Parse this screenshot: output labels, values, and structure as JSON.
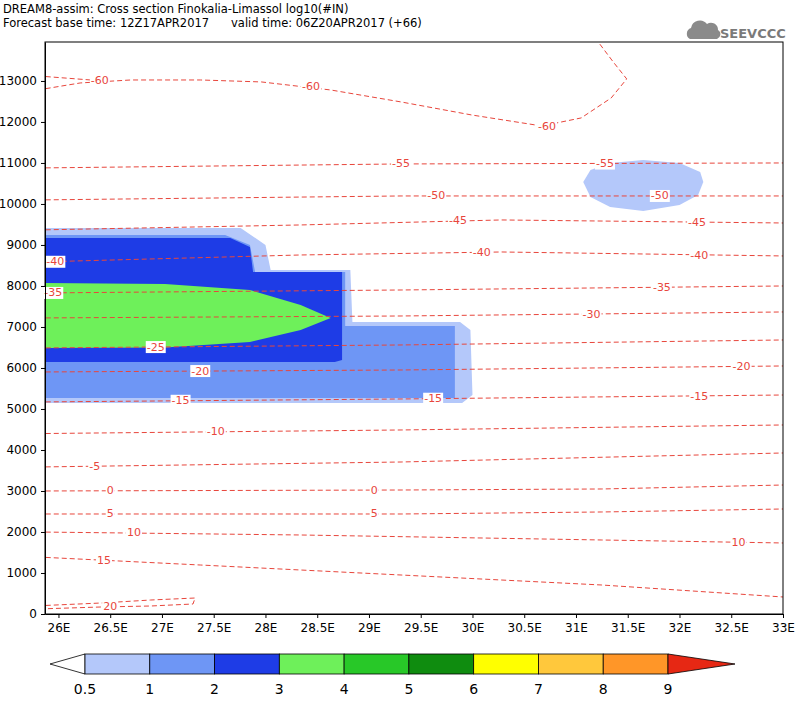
{
  "chart_data": {
    "type": "contour",
    "title": "DREAM8-assim: Cross section Finokalia-Limassol log10(#IN)",
    "subtitle": "Forecast base time: 12Z17APR2017      valid time: 06Z20APR2017 (+66)",
    "logo": "SEEVCCC",
    "xlim": [
      25.87,
      33.0
    ],
    "ylim": [
      0,
      13950
    ],
    "xticks": [
      {
        "value": 26,
        "label": "26E"
      },
      {
        "value": 26.5,
        "label": "26.5E"
      },
      {
        "value": 27,
        "label": "27E"
      },
      {
        "value": 27.5,
        "label": "27.5E"
      },
      {
        "value": 28,
        "label": "28E"
      },
      {
        "value": 28.5,
        "label": "28.5E"
      },
      {
        "value": 29,
        "label": "29E"
      },
      {
        "value": 29.5,
        "label": "29.5E"
      },
      {
        "value": 30,
        "label": "30E"
      },
      {
        "value": 30.5,
        "label": "30.5E"
      },
      {
        "value": 31,
        "label": "31E"
      },
      {
        "value": 31.5,
        "label": "31.5E"
      },
      {
        "value": 32,
        "label": "32E"
      },
      {
        "value": 32.5,
        "label": "32.5E"
      },
      {
        "value": 33,
        "label": "33E"
      }
    ],
    "yticks": [
      0,
      1000,
      2000,
      3000,
      4000,
      5000,
      6000,
      7000,
      8000,
      9000,
      10000,
      11000,
      12000,
      13000
    ],
    "color": "#e8463c",
    "line_style": "dashed",
    "colorbar": {
      "ticks": [
        0.5,
        1,
        2,
        3,
        4,
        5,
        6,
        7,
        8,
        9
      ],
      "colors": [
        "#ffffff",
        "#b4c8fa",
        "#6e96f5",
        "#1e3ce6",
        "#6ef05a",
        "#28c828",
        "#0f8c0f",
        "#ffff00",
        "#ffc83c",
        "#ff9628",
        "#e62814"
      ]
    },
    "fields": [
      {
        "level": 0.5,
        "lon": [
          25.8,
          27.76,
          28.0,
          28.05,
          28.82,
          28.84,
          29.88,
          29.98,
          30.0,
          29.9,
          25.8
        ],
        "alt": [
          9415,
          9415,
          9000,
          8390,
          8390,
          7122,
          7122,
          6927,
          5341,
          5146,
          5146
        ]
      },
      {
        "level": 1,
        "lon": [
          25.8,
          27.61,
          27.85,
          27.9,
          28.77,
          28.77,
          29.83,
          29.83,
          25.8
        ],
        "alt": [
          9244,
          9244,
          9000,
          8341,
          8341,
          7024,
          7024,
          5268,
          5268
        ]
      },
      {
        "level": 2,
        "lon": [
          25.8,
          27.66,
          27.85,
          27.88,
          28.74,
          28.74,
          28.67,
          25.8
        ],
        "alt": [
          9171,
          9171,
          8950,
          8341,
          8341,
          6195,
          6146,
          6146
        ]
      },
      {
        "level": 3,
        "lon": [
          25.8,
          27.03,
          27.85,
          28.34,
          28.63,
          28.34,
          27.85,
          27.03,
          25.8
        ],
        "alt": [
          8073,
          8050,
          7902,
          7537,
          7220,
          6927,
          6634,
          6500,
          6488
        ]
      },
      {
        "level": 0.5,
        "lon": [
          31.07,
          31.14,
          31.33,
          31.65,
          32.0,
          32.2,
          32.23,
          32.18,
          32.0,
          31.65,
          31.33,
          31.14
        ],
        "alt": [
          10537,
          10829,
          11000,
          11073,
          11000,
          10780,
          10537,
          10220,
          9976,
          9829,
          9927,
          10171
        ]
      }
    ],
    "isotherms": [
      {
        "value": 20,
        "lon": [
          25.8,
          26.41,
          26.89,
          27.32,
          27.3,
          26.89,
          26.41,
          25.8
        ],
        "alt": [
          200,
          268,
          341,
          390,
          244,
          195,
          171,
          122
        ],
        "labels": [
          [
            26.5,
            195
          ]
        ]
      },
      {
        "value": 15,
        "lon": [
          25.8,
          27.37,
          29.31,
          31.25,
          33.0
        ],
        "alt": [
          1390,
          1195,
          951,
          707,
          415
        ],
        "labels": [
          [
            26.44,
            1310
          ]
        ]
      },
      {
        "value": 10,
        "lon": [
          25.8,
          28.34,
          31.25,
          33.0
        ],
        "alt": [
          2000,
          1927,
          1805,
          1732
        ],
        "labels": [
          [
            26.73,
            1980
          ],
          [
            32.57,
            1740
          ]
        ]
      },
      {
        "value": 5,
        "lon": [
          25.8,
          29.31,
          31.25,
          33.0
        ],
        "alt": [
          2439,
          2439,
          2488,
          2561
        ],
        "labels": [
          [
            26.5,
            2439
          ],
          [
            29.05,
            2439
          ]
        ]
      },
      {
        "value": 0,
        "lon": [
          25.8,
          29.31,
          31.25,
          33.0
        ],
        "alt": [
          3000,
          3024,
          3049,
          3146
        ],
        "labels": [
          [
            26.5,
            3005
          ],
          [
            29.05,
            3020
          ]
        ]
      },
      {
        "value": -5,
        "lon": [
          25.8,
          29.31,
          33.0
        ],
        "alt": [
          3585,
          3707,
          3927
        ],
        "labels": [
          [
            26.35,
            3605
          ]
        ]
      },
      {
        "value": -10,
        "lon": [
          25.8,
          29.31,
          33.0
        ],
        "alt": [
          4400,
          4488,
          4610
        ],
        "labels": [
          [
            27.52,
            4440
          ]
        ]
      },
      {
        "value": -15,
        "lon": [
          25.8,
          29.31,
          33.0
        ],
        "alt": [
          5171,
          5244,
          5341
        ],
        "labels": [
          [
            27.18,
            5200
          ],
          [
            29.62,
            5250
          ],
          [
            32.19,
            5310
          ]
        ]
      },
      {
        "value": -20,
        "lon": [
          25.8,
          29.31,
          33.0
        ],
        "alt": [
          5902,
          5951,
          6049
        ],
        "labels": [
          [
            27.37,
            5925
          ],
          [
            32.6,
            6040
          ]
        ]
      },
      {
        "value": -25,
        "lon": [
          25.8,
          29.31,
          33.0
        ],
        "alt": [
          6488,
          6561,
          6683
        ],
        "labels": [
          [
            26.94,
            6510
          ]
        ]
      },
      {
        "value": -30,
        "lon": [
          25.8,
          29.31,
          33.0
        ],
        "alt": [
          7220,
          7268,
          7366
        ],
        "labels": [
          [
            31.15,
            7310
          ]
        ]
      },
      {
        "value": -35,
        "lon": [
          25.8,
          29.31,
          33.0
        ],
        "alt": [
          7829,
          7902,
          8000
        ],
        "labels": [
          [
            25.95,
            7830
          ],
          [
            31.83,
            7960
          ]
        ]
      },
      {
        "value": -40,
        "lon": [
          25.8,
          28.34,
          30.28,
          33.0
        ],
        "alt": [
          8585,
          8756,
          8829,
          8732
        ],
        "labels": [
          [
            25.97,
            8590
          ],
          [
            30.09,
            8825
          ],
          [
            32.19,
            8740
          ]
        ]
      },
      {
        "value": -45,
        "lon": [
          25.8,
          28.34,
          30.28,
          33.0
        ],
        "alt": [
          9366,
          9488,
          9610,
          9536
        ],
        "labels": [
          [
            29.86,
            9590
          ],
          [
            32.17,
            9560
          ]
        ]
      },
      {
        "value": -50,
        "lon": [
          25.8,
          29.31,
          33.0
        ],
        "alt": [
          10098,
          10195,
          10195
        ],
        "labels": [
          [
            29.65,
            10195
          ],
          [
            31.81,
            10195
          ]
        ]
      },
      {
        "value": -55,
        "lon": [
          25.8,
          29.31,
          33.0
        ],
        "alt": [
          10878,
          10976,
          11000
        ],
        "labels": [
          [
            29.31,
            10976
          ],
          [
            31.28,
            10985
          ]
        ]
      },
      {
        "value": -60,
        "lon": [
          25.8,
          26.21,
          26.7,
          27.37,
          27.96,
          28.63,
          29.31,
          29.99,
          30.67,
          31.05,
          31.34,
          31.49,
          31.36,
          31.2,
          null,
          25.8,
          26.31
        ],
        "alt": [
          12780,
          12951,
          13024,
          13024,
          12976,
          12780,
          12488,
          12171,
          11902,
          12098,
          12585,
          13049,
          13463,
          14000,
          null,
          13122,
          13024
        ],
        "labels": [
          [
            26.4,
            13000
          ],
          [
            28.44,
            12860
          ],
          [
            30.72,
            11900
          ]
        ]
      }
    ]
  }
}
